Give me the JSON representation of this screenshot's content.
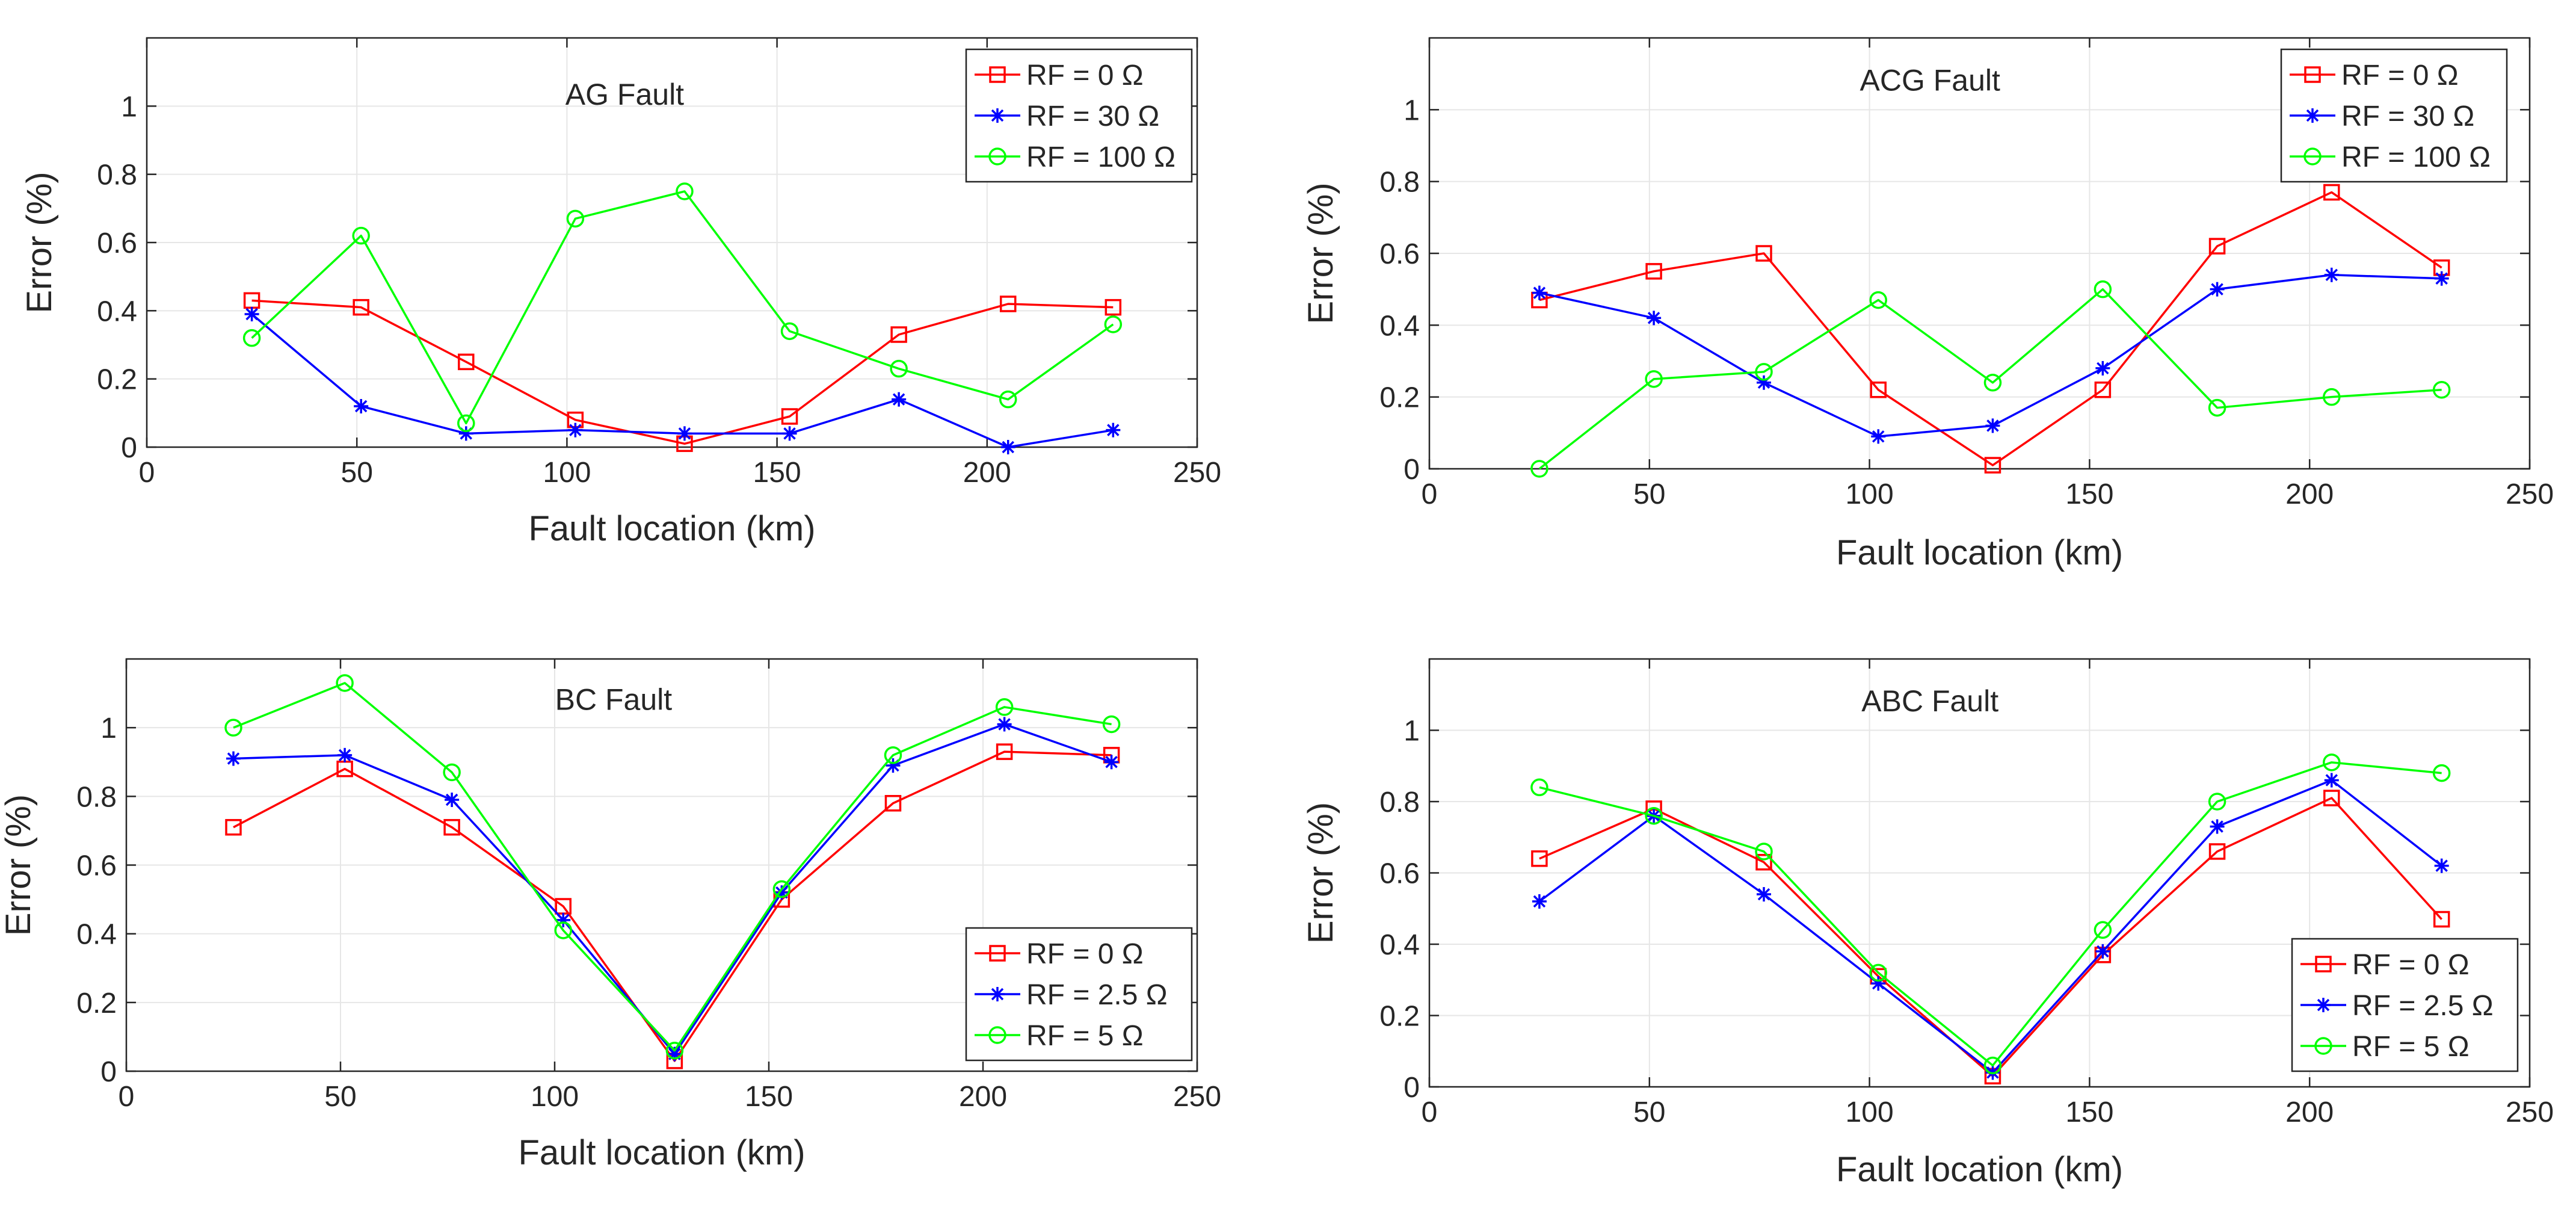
{
  "chart_data": [
    {
      "type": "line",
      "title": "AG Fault",
      "xlabel": "Fault location (km)",
      "ylabel": "Error (%)",
      "xlim": [
        0,
        250
      ],
      "ylim": [
        0,
        1.2
      ],
      "xticks": [
        0,
        50,
        100,
        150,
        200,
        250
      ],
      "yticks": [
        0,
        0.2,
        0.4,
        0.6,
        0.8,
        1
      ],
      "grid": true,
      "legend_position": "top-right",
      "x": [
        25,
        51,
        76,
        102,
        128,
        153,
        179,
        205,
        230
      ],
      "series": [
        {
          "name": "RF = 0 Ω",
          "color": "#ff0000",
          "marker": "square",
          "values": [
            0.43,
            0.41,
            0.25,
            0.08,
            0.01,
            0.09,
            0.33,
            0.42,
            0.41
          ]
        },
        {
          "name": "RF = 30 Ω",
          "color": "#0000ff",
          "marker": "star",
          "values": [
            0.39,
            0.12,
            0.04,
            0.05,
            0.04,
            0.04,
            0.14,
            0.0,
            0.05
          ]
        },
        {
          "name": "RF = 100 Ω",
          "color": "#00ff00",
          "marker": "circle",
          "values": [
            0.32,
            0.62,
            0.07,
            0.67,
            0.75,
            0.34,
            0.23,
            0.14,
            0.36
          ]
        }
      ]
    },
    {
      "type": "line",
      "title": "ACG Fault",
      "xlabel": "Fault location (km)",
      "ylabel": "Error (%)",
      "xlim": [
        0,
        250
      ],
      "ylim": [
        0,
        1.2
      ],
      "xticks": [
        0,
        50,
        100,
        150,
        200,
        250
      ],
      "yticks": [
        0,
        0.2,
        0.4,
        0.6,
        0.8,
        1
      ],
      "grid": true,
      "legend_position": "top-right",
      "x": [
        25,
        51,
        76,
        102,
        128,
        153,
        179,
        205,
        230
      ],
      "series": [
        {
          "name": "RF = 0 Ω",
          "color": "#ff0000",
          "marker": "square",
          "values": [
            0.47,
            0.55,
            0.6,
            0.22,
            0.01,
            0.22,
            0.62,
            0.77,
            0.56
          ]
        },
        {
          "name": "RF = 30 Ω",
          "color": "#0000ff",
          "marker": "star",
          "values": [
            0.49,
            0.42,
            0.24,
            0.09,
            0.12,
            0.28,
            0.5,
            0.54,
            0.53
          ]
        },
        {
          "name": "RF = 100 Ω",
          "color": "#00ff00",
          "marker": "circle",
          "values": [
            0.0,
            0.25,
            0.27,
            0.47,
            0.24,
            0.5,
            0.17,
            0.2,
            0.22
          ]
        }
      ]
    },
    {
      "type": "line",
      "title": "BC Fault",
      "xlabel": "Fault location (km)",
      "ylabel": "Error (%)",
      "xlim": [
        0,
        250
      ],
      "ylim": [
        0,
        1.2
      ],
      "xticks": [
        0,
        50,
        100,
        150,
        200,
        250
      ],
      "yticks": [
        0,
        0.2,
        0.4,
        0.6,
        0.8,
        1
      ],
      "grid": true,
      "legend_position": "bottom-right",
      "x": [
        25,
        51,
        76,
        102,
        128,
        153,
        179,
        205,
        230
      ],
      "series": [
        {
          "name": "RF = 0 Ω",
          "color": "#ff0000",
          "marker": "square",
          "values": [
            0.71,
            0.88,
            0.71,
            0.48,
            0.03,
            0.5,
            0.78,
            0.93,
            0.92
          ]
        },
        {
          "name": "RF = 2.5 Ω",
          "color": "#0000ff",
          "marker": "star",
          "values": [
            0.91,
            0.92,
            0.79,
            0.44,
            0.05,
            0.52,
            0.89,
            1.01,
            0.9
          ]
        },
        {
          "name": "RF = 5 Ω",
          "color": "#00ff00",
          "marker": "circle",
          "values": [
            1.0,
            1.13,
            0.87,
            0.41,
            0.06,
            0.53,
            0.92,
            1.06,
            1.01
          ]
        }
      ]
    },
    {
      "type": "line",
      "title": "ABC Fault",
      "xlabel": "Fault location (km)",
      "ylabel": "Error (%)",
      "xlim": [
        0,
        250
      ],
      "ylim": [
        0,
        1.2
      ],
      "xticks": [
        0,
        50,
        100,
        150,
        200,
        250
      ],
      "yticks": [
        0,
        0.2,
        0.4,
        0.6,
        0.8,
        1
      ],
      "grid": true,
      "legend_position": "bottom-right",
      "x": [
        25,
        51,
        76,
        102,
        128,
        153,
        179,
        205,
        230
      ],
      "series": [
        {
          "name": "RF = 0 Ω",
          "color": "#ff0000",
          "marker": "square",
          "values": [
            0.64,
            0.78,
            0.63,
            0.31,
            0.03,
            0.37,
            0.66,
            0.81,
            0.47
          ]
        },
        {
          "name": "RF = 2.5 Ω",
          "color": "#0000ff",
          "marker": "star",
          "values": [
            0.52,
            0.76,
            0.54,
            0.29,
            0.04,
            0.38,
            0.73,
            0.86,
            0.62
          ]
        },
        {
          "name": "RF = 5 Ω",
          "color": "#00ff00",
          "marker": "circle",
          "values": [
            0.84,
            0.76,
            0.66,
            0.32,
            0.06,
            0.44,
            0.8,
            0.91,
            0.88
          ]
        }
      ]
    }
  ]
}
